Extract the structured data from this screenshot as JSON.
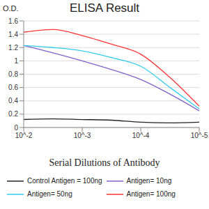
{
  "chart_data": {
    "type": "line",
    "title": "ELISA Result",
    "y_label": "O.D.",
    "x_label": "Serial Dilutions of Antibody",
    "log": "x",
    "grid": true,
    "legend": "bottom",
    "x": [
      0.01,
      0.00316,
      0.001,
      0.000316,
      0.0001,
      3.16e-05,
      1e-05
    ],
    "xlim": [
      0.01,
      1e-05
    ],
    "xticks": [
      {
        "value": 0.01,
        "label": "10^-2"
      },
      {
        "value": 0.001,
        "label": "10^-3"
      },
      {
        "value": 0.0001,
        "label": "10^-4"
      },
      {
        "value": 1e-05,
        "label": "10^-5"
      }
    ],
    "ylim": [
      0,
      1.6
    ],
    "yticks": [
      0,
      0.2,
      0.4,
      0.6,
      0.8,
      1,
      1.2,
      1.4,
      1.6
    ],
    "series": [
      {
        "name": "Control Antigen = 100ng",
        "color": "#222222",
        "values": [
          0.12,
          0.13,
          0.12,
          0.11,
          0.08,
          0.07,
          0.08
        ]
      },
      {
        "name": "Antigen= 10ng",
        "color": "#8060c8",
        "values": [
          1.23,
          1.12,
          1.0,
          0.87,
          0.72,
          0.5,
          0.25
        ]
      },
      {
        "name": "Antigen= 50ng",
        "color": "#33ccee",
        "values": [
          1.23,
          1.2,
          1.15,
          1.05,
          0.92,
          0.6,
          0.28
        ]
      },
      {
        "name": "Antigen= 100ng",
        "color": "#ff3333",
        "values": [
          1.43,
          1.47,
          1.38,
          1.25,
          1.1,
          0.75,
          0.32
        ]
      }
    ]
  }
}
